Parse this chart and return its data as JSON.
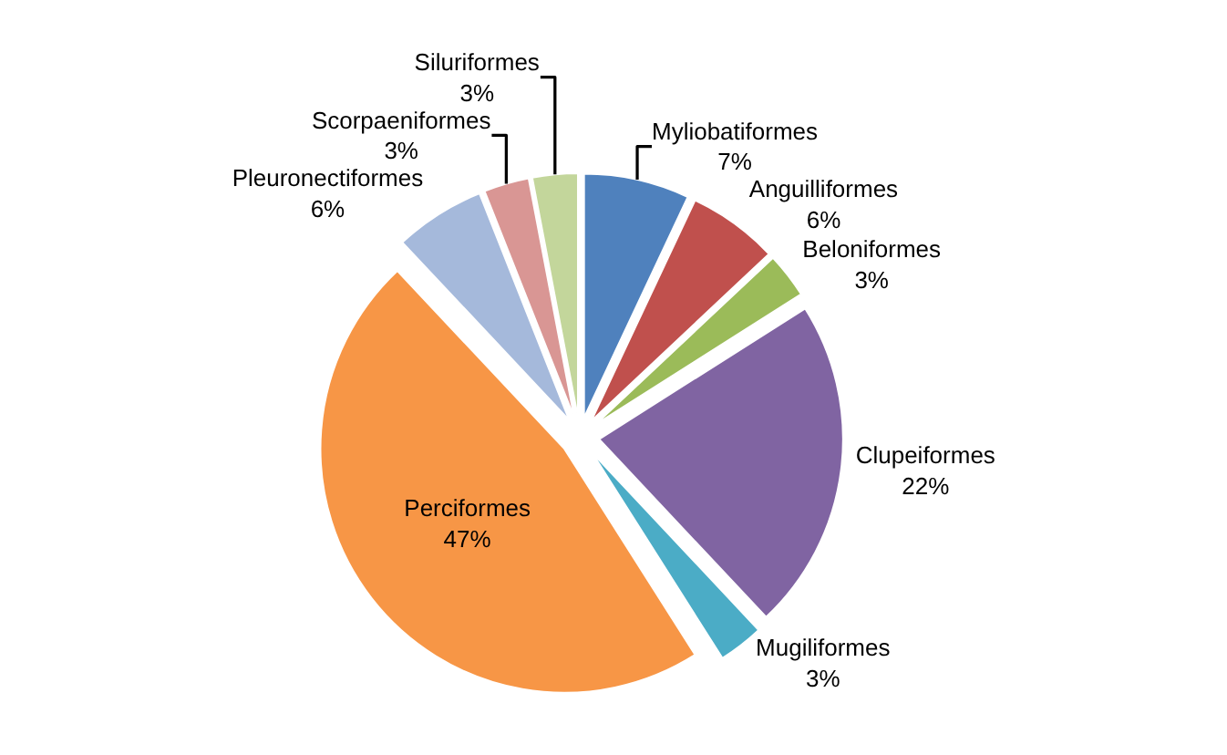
{
  "chart_data": {
    "type": "pie",
    "categories": [
      "Myliobatiformes",
      "Anguilliformes",
      "Beloniformes",
      "Clupeiformes",
      "Mugiliformes",
      "Perciformes",
      "Pleuronectiformes",
      "Scorpaeniformes",
      "Siluriformes"
    ],
    "values": [
      7,
      6,
      3,
      22,
      3,
      47,
      6,
      3,
      3
    ],
    "value_labels": [
      "7%",
      "6%",
      "3%",
      "22%",
      "3%",
      "47%",
      "6%",
      "3%",
      "3%"
    ],
    "colors": [
      "#4f81bd",
      "#c0504d",
      "#9bbb59",
      "#8064a2",
      "#4bacc6",
      "#f79646",
      "#a5b9db",
      "#d99694",
      "#c3d69b"
    ],
    "legend": false
  }
}
